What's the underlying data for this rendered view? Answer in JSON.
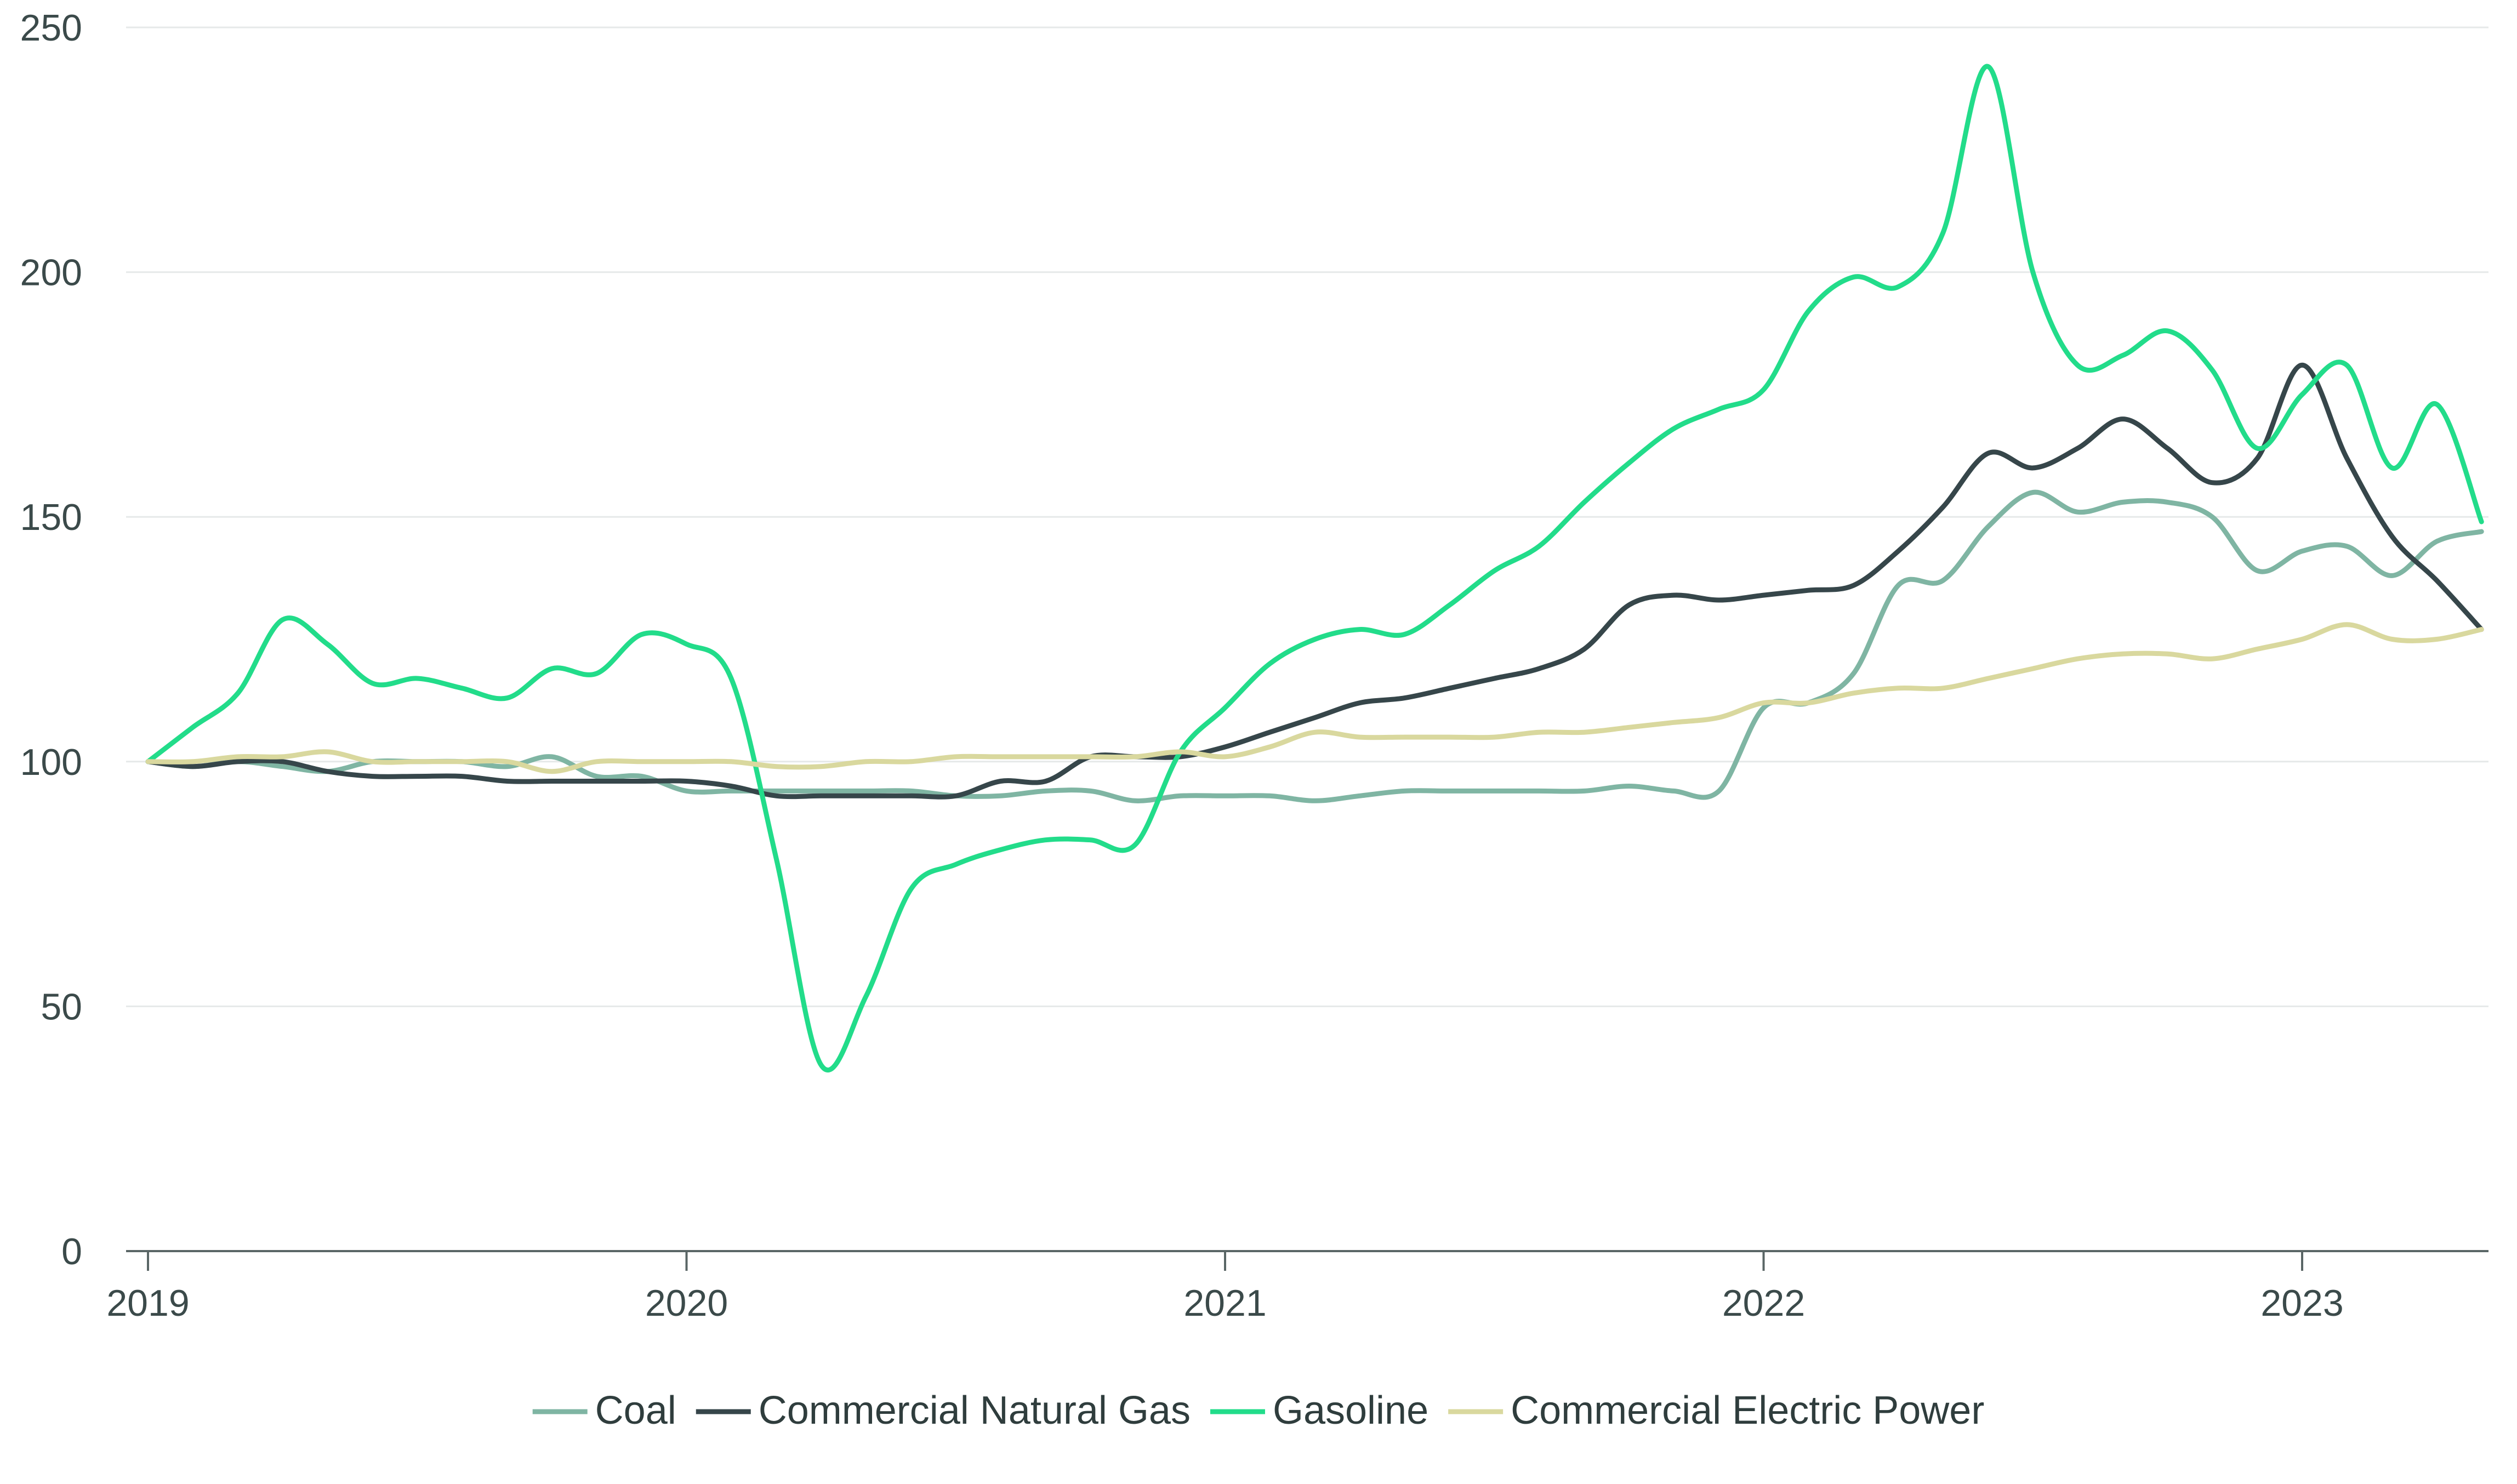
{
  "chart_data": {
    "type": "line",
    "title": "",
    "xlabel": "",
    "ylabel": "",
    "ylim": [
      0,
      250
    ],
    "xlim": [
      2019.0,
      2023.35
    ],
    "yticks": [
      0,
      50,
      100,
      150,
      200,
      250
    ],
    "xticks": [
      2019,
      2020,
      2021,
      2022,
      2023
    ],
    "xtick_labels": [
      "2019",
      "2020",
      "2021",
      "2022",
      "2023"
    ],
    "grid": true,
    "legend_position": "bottom-center",
    "series": [
      {
        "name": "Coal",
        "color": "#7fb5a3",
        "x": [
          2019.0,
          2019.083,
          2019.167,
          2019.25,
          2019.333,
          2019.417,
          2019.5,
          2019.583,
          2019.667,
          2019.75,
          2019.833,
          2019.917,
          2020.0,
          2020.083,
          2020.167,
          2020.25,
          2020.333,
          2020.417,
          2020.5,
          2020.583,
          2020.667,
          2020.75,
          2020.833,
          2020.917,
          2021.0,
          2021.083,
          2021.167,
          2021.25,
          2021.333,
          2021.417,
          2021.5,
          2021.583,
          2021.667,
          2021.75,
          2021.833,
          2021.917,
          2022.0,
          2022.083,
          2022.167,
          2022.25,
          2022.333,
          2022.417,
          2022.5,
          2022.583,
          2022.667,
          2022.75,
          2022.833,
          2022.917,
          2023.0,
          2023.083,
          2023.167,
          2023.25,
          2023.333
        ],
        "values": [
          100,
          99,
          100,
          99,
          98,
          100,
          100,
          100,
          99,
          101,
          97,
          97,
          94,
          94,
          94,
          94,
          94,
          94,
          93,
          93,
          94,
          94,
          92,
          93,
          93,
          93,
          92,
          93,
          94,
          94,
          94,
          94,
          94,
          95,
          94,
          94,
          111,
          112,
          118,
          136,
          137,
          148,
          155,
          151,
          153,
          153,
          150,
          139,
          143,
          144,
          138,
          145,
          147
        ]
      },
      {
        "name": "Commercial Natural Gas",
        "color": "#36464a",
        "x": [
          2019.0,
          2019.083,
          2019.167,
          2019.25,
          2019.333,
          2019.417,
          2019.5,
          2019.583,
          2019.667,
          2019.75,
          2019.833,
          2019.917,
          2020.0,
          2020.083,
          2020.167,
          2020.25,
          2020.333,
          2020.417,
          2020.5,
          2020.583,
          2020.667,
          2020.75,
          2020.833,
          2020.917,
          2021.0,
          2021.083,
          2021.167,
          2021.25,
          2021.333,
          2021.417,
          2021.5,
          2021.583,
          2021.667,
          2021.75,
          2021.833,
          2021.917,
          2022.0,
          2022.083,
          2022.167,
          2022.25,
          2022.333,
          2022.417,
          2022.5,
          2022.583,
          2022.667,
          2022.75,
          2022.833,
          2022.917,
          2023.0,
          2023.083,
          2023.167,
          2023.25,
          2023.333
        ],
        "values": [
          100,
          99,
          100,
          100,
          98,
          97,
          97,
          97,
          96,
          96,
          96,
          96,
          96,
          95,
          93,
          93,
          93,
          93,
          93,
          96,
          96,
          101,
          101,
          101,
          103,
          106,
          109,
          112,
          113,
          115,
          117,
          119,
          123,
          132,
          134,
          133,
          134,
          135,
          136,
          143,
          152,
          163,
          160,
          164,
          170,
          164,
          157,
          162,
          181,
          162,
          146,
          137,
          127
        ]
      },
      {
        "name": "Gasoline",
        "color": "#22dc8a",
        "x": [
          2019.0,
          2019.083,
          2019.167,
          2019.25,
          2019.333,
          2019.417,
          2019.5,
          2019.583,
          2019.667,
          2019.75,
          2019.833,
          2019.917,
          2020.0,
          2020.083,
          2020.167,
          2020.25,
          2020.333,
          2020.417,
          2020.5,
          2020.583,
          2020.667,
          2020.75,
          2020.833,
          2020.917,
          2021.0,
          2021.083,
          2021.167,
          2021.25,
          2021.333,
          2021.417,
          2021.5,
          2021.583,
          2021.667,
          2021.75,
          2021.833,
          2021.917,
          2022.0,
          2022.083,
          2022.167,
          2022.25,
          2022.333,
          2022.417,
          2022.5,
          2022.583,
          2022.667,
          2022.75,
          2022.833,
          2022.917,
          2023.0,
          2023.083,
          2023.167,
          2023.25,
          2023.333
        ],
        "values": [
          100,
          107,
          114,
          129,
          124,
          116,
          117,
          115,
          113,
          119,
          118,
          126,
          124,
          117,
          80,
          38,
          52,
          74,
          79,
          82,
          84,
          84,
          83,
          102,
          111,
          120,
          125,
          127,
          126,
          132,
          139,
          144,
          153,
          161,
          168,
          172,
          176,
          192,
          199,
          197,
          208,
          242,
          200,
          181,
          183,
          188,
          180,
          164,
          175,
          181,
          160,
          173,
          149
        ]
      },
      {
        "name": "Commercial Electric Power",
        "color": "#d9d89e",
        "x": [
          2019.0,
          2019.083,
          2019.167,
          2019.25,
          2019.333,
          2019.417,
          2019.5,
          2019.583,
          2019.667,
          2019.75,
          2019.833,
          2019.917,
          2020.0,
          2020.083,
          2020.167,
          2020.25,
          2020.333,
          2020.417,
          2020.5,
          2020.583,
          2020.667,
          2020.75,
          2020.833,
          2020.917,
          2021.0,
          2021.083,
          2021.167,
          2021.25,
          2021.333,
          2021.417,
          2021.5,
          2021.583,
          2021.667,
          2021.75,
          2021.833,
          2021.917,
          2022.0,
          2022.083,
          2022.167,
          2022.25,
          2022.333,
          2022.417,
          2022.5,
          2022.583,
          2022.667,
          2022.75,
          2022.833,
          2022.917,
          2023.0,
          2023.083,
          2023.167,
          2023.25,
          2023.333
        ],
        "values": [
          100,
          100,
          101,
          101,
          102,
          100,
          100,
          100,
          100,
          98,
          100,
          100,
          100,
          100,
          99,
          99,
          100,
          100,
          101,
          101,
          101,
          101,
          101,
          102,
          101,
          103,
          106,
          105,
          105,
          105,
          105,
          106,
          106,
          107,
          108,
          109,
          112,
          112,
          114,
          115,
          115,
          117,
          119,
          121,
          122,
          122,
          121,
          123,
          125,
          128,
          125,
          125,
          127
        ]
      }
    ]
  }
}
